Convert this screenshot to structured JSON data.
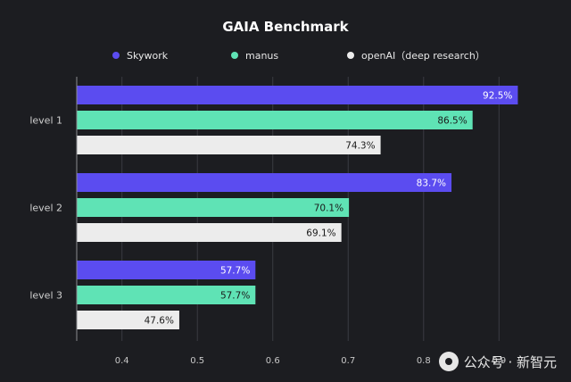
{
  "chart_data": {
    "type": "bar",
    "orientation": "horizontal",
    "title": "GAIA Benchmark",
    "categories": [
      "level 1",
      "level 2",
      "level 3"
    ],
    "series": [
      {
        "name": "Skywork",
        "color": "#5b4cf0",
        "values": [
          0.925,
          0.837,
          0.577
        ],
        "labels": [
          "92.5%",
          "83.7%",
          "57.7%"
        ],
        "label_color": "#ffffff"
      },
      {
        "name": "manus",
        "color": "#5fe3b5",
        "values": [
          0.865,
          0.701,
          0.577
        ],
        "labels": [
          "86.5%",
          "70.1%",
          "57.7%"
        ],
        "label_color": "#1a1a1a"
      },
      {
        "name": "openAI（deep research）",
        "color": "#ececec",
        "values": [
          0.743,
          0.691,
          0.476
        ],
        "labels": [
          "74.3%",
          "69.1%",
          "47.6%"
        ],
        "label_color": "#1a1a1a"
      }
    ],
    "xticks": [
      "0.4",
      "0.5",
      "0.6",
      "0.7",
      "0.8",
      "0.9"
    ],
    "xlim": [
      0.34,
      0.96
    ],
    "grid": true,
    "legend_position": "top"
  },
  "watermark": {
    "icon": "wechat-channel-icon",
    "text": "公众号 · 新智元"
  }
}
